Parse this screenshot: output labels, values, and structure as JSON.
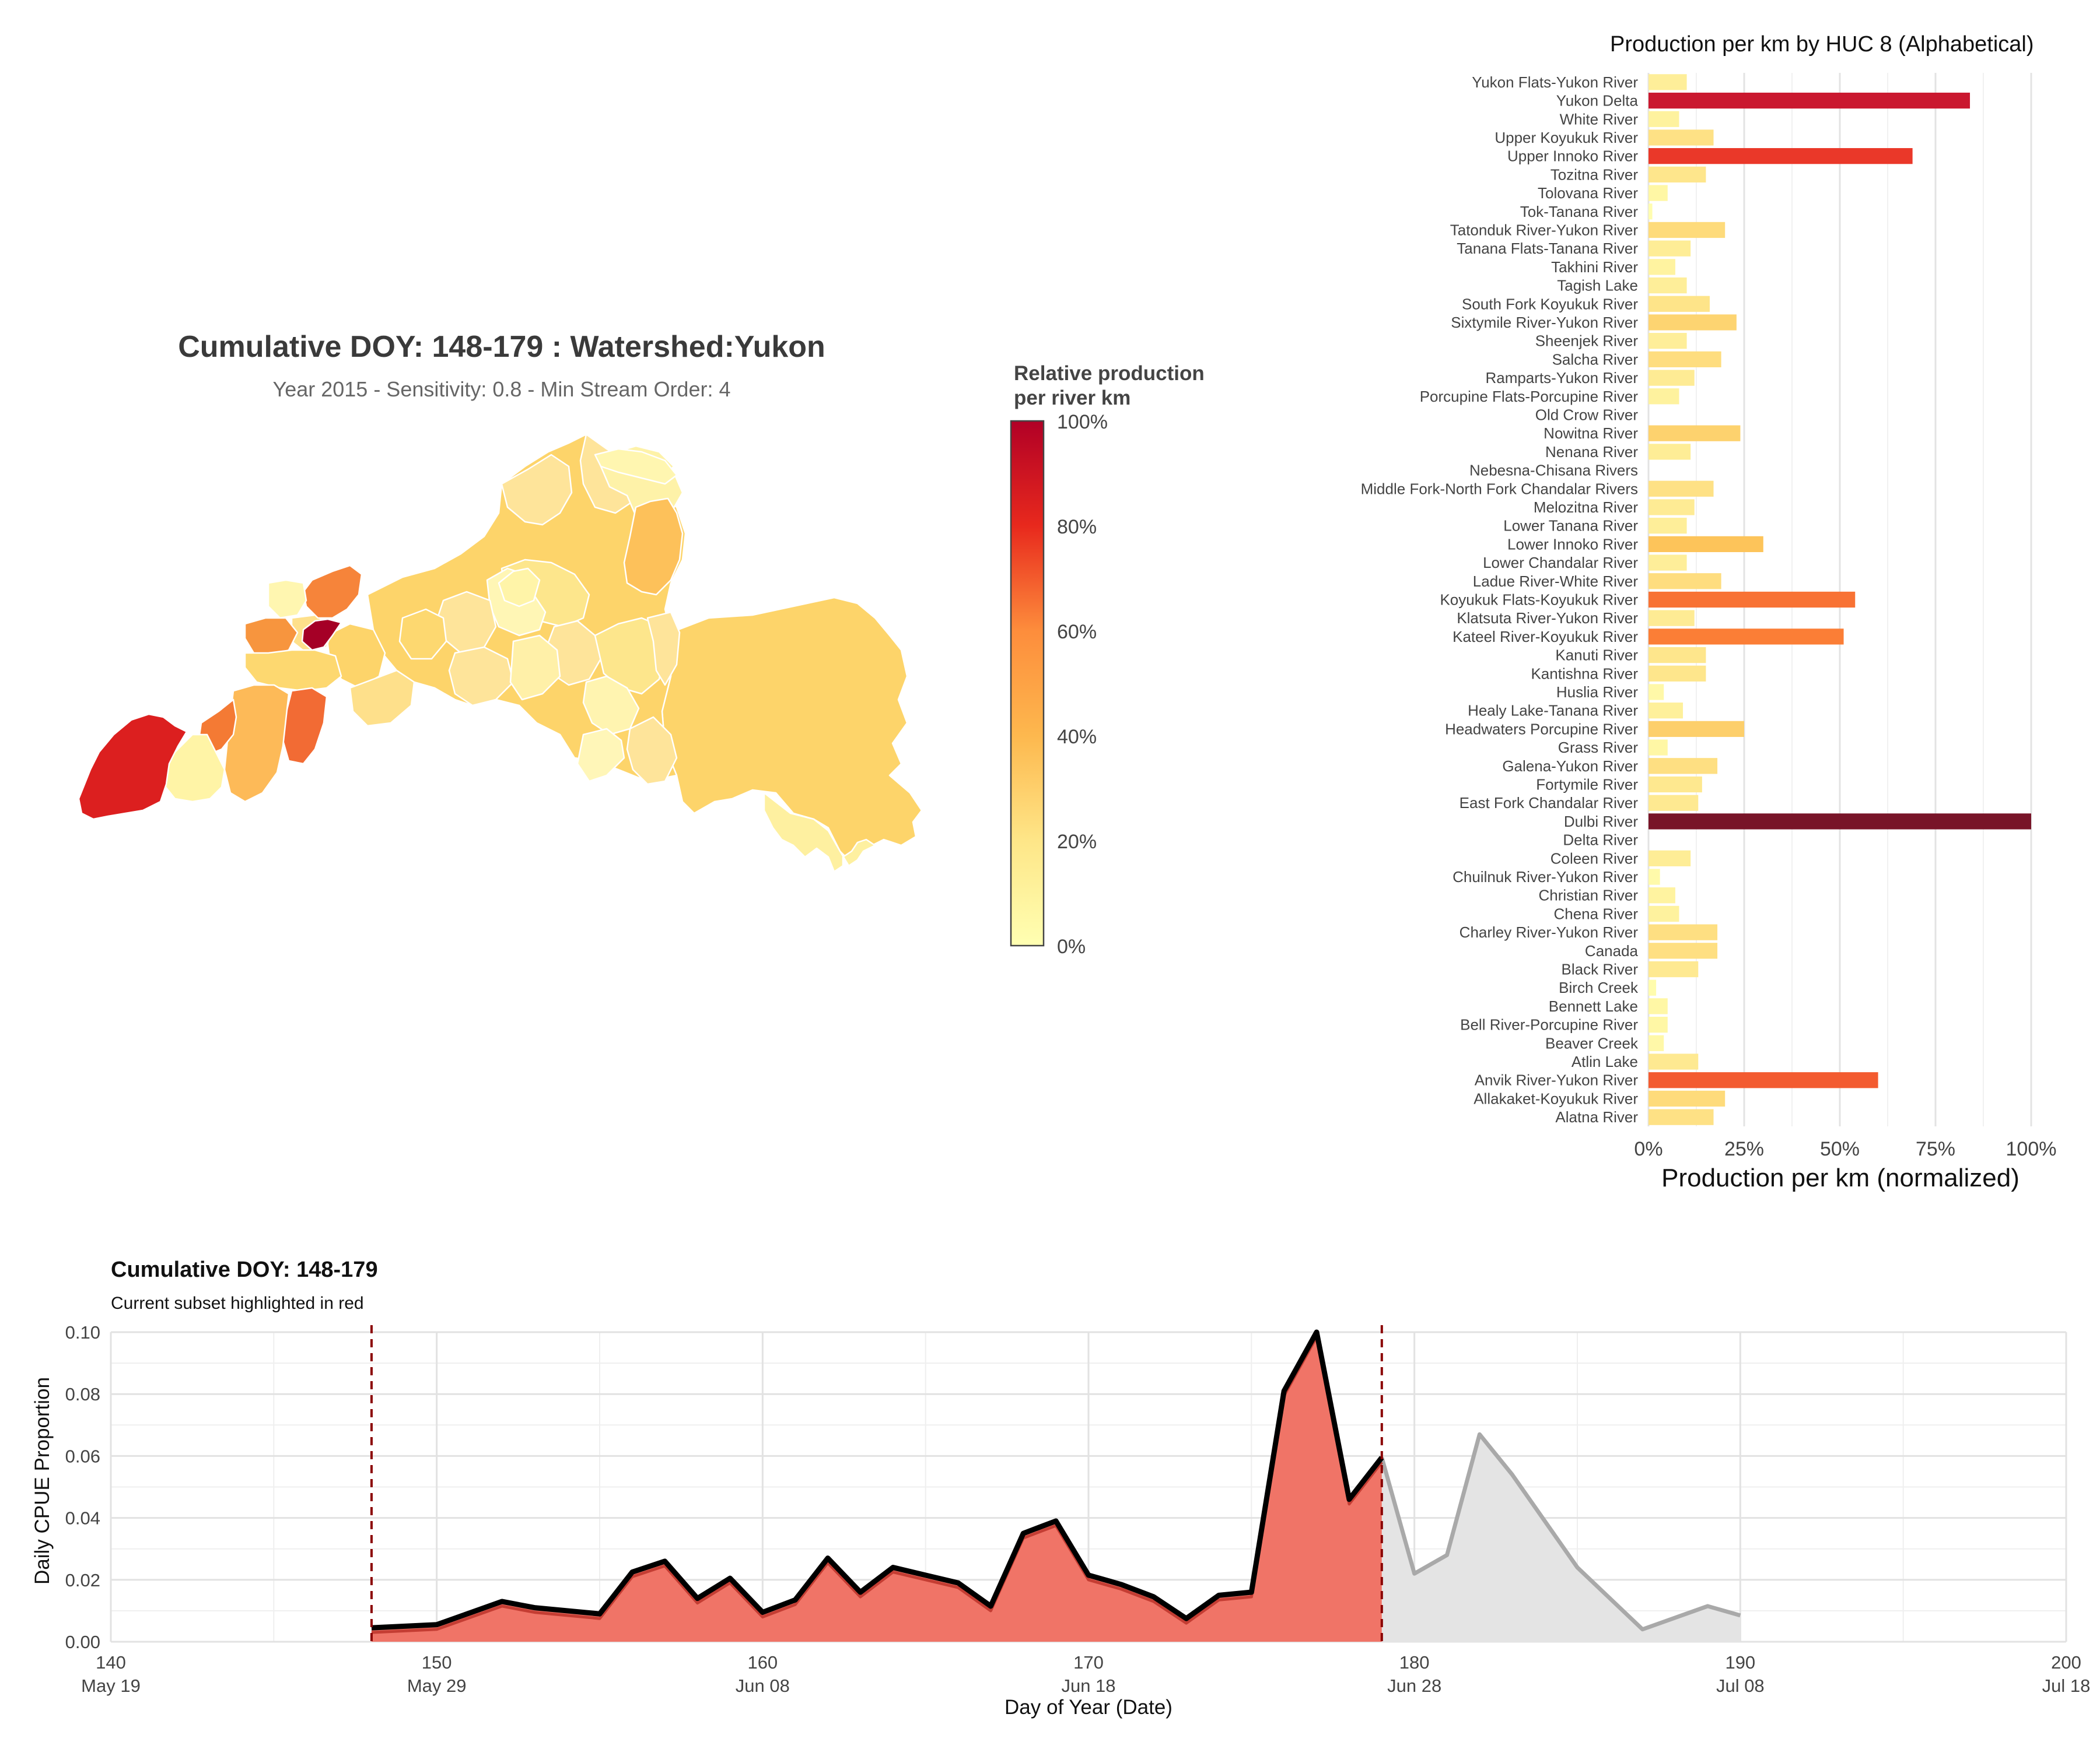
{
  "map": {
    "title": "Cumulative DOY: 148-179 : Watershed:Yukon",
    "subtitle": "Year 2015 - Sensitivity: 0.8 - Min Stream Order: 4",
    "legend_title_line1": "Relative production",
    "legend_title_line2": "per river km",
    "legend_ticks": [
      "100%",
      "80%",
      "60%",
      "40%",
      "20%",
      "0%"
    ],
    "legend_tick_values": [
      1.0,
      0.8,
      0.6,
      0.4,
      0.2,
      0.0
    ],
    "colors": {
      "high": "#b10026",
      "mid_high": "#e31a1c",
      "mid": "#fd8d3c",
      "mid_low": "#fecc5c",
      "low": "#ffffb2"
    }
  },
  "chart_data": [
    {
      "type": "bar",
      "orientation": "horizontal",
      "title": "Production per km by HUC 8 (Alphabetical)",
      "xlabel": "Production per km (normalized)",
      "ylabel": "",
      "xlim": [
        0,
        1
      ],
      "x_ticks": [
        "0%",
        "25%",
        "50%",
        "75%",
        "100%"
      ],
      "x_tick_values": [
        0,
        0.25,
        0.5,
        0.75,
        1.0
      ],
      "grid": true,
      "categories": [
        "Yukon Flats-Yukon River",
        "Yukon Delta",
        "White River",
        "Upper Koyukuk River",
        "Upper Innoko River",
        "Tozitna River",
        "Tolovana River",
        "Tok-Tanana River",
        "Tatonduk River-Yukon River",
        "Tanana Flats-Tanana River",
        "Takhini River",
        "Tagish Lake",
        "South Fork Koyukuk River",
        "Sixtymile River-Yukon River",
        "Sheenjek River",
        "Salcha River",
        "Ramparts-Yukon River",
        "Porcupine Flats-Porcupine River",
        "Old Crow River",
        "Nowitna River",
        "Nenana River",
        "Nebesna-Chisana Rivers",
        "Middle Fork-North Fork Chandalar Rivers",
        "Melozitna River",
        "Lower Tanana River",
        "Lower Innoko River",
        "Lower Chandalar River",
        "Ladue River-White River",
        "Koyukuk Flats-Koyukuk River",
        "Klatsuta River-Yukon River",
        "Kateel River-Koyukuk River",
        "Kanuti River",
        "Kantishna River",
        "Huslia River",
        "Healy Lake-Tanana River",
        "Headwaters Porcupine River",
        "Grass River",
        "Galena-Yukon River",
        "Fortymile River",
        "East Fork Chandalar River",
        "Dulbi River",
        "Delta River",
        "Coleen River",
        "Chuilnuk River-Yukon River",
        "Christian River",
        "Chena River",
        "Charley River-Yukon River",
        "Canada",
        "Black River",
        "Birch Creek",
        "Bennett Lake",
        "Bell River-Porcupine River",
        "Beaver Creek",
        "Atlin Lake",
        "Anvik River-Yukon River",
        "Allakaket-Koyukuk River",
        "Alatna River"
      ],
      "values": [
        0.1,
        0.84,
        0.08,
        0.17,
        0.69,
        0.15,
        0.05,
        0.01,
        0.2,
        0.11,
        0.07,
        0.1,
        0.16,
        0.23,
        0.1,
        0.19,
        0.12,
        0.08,
        0.0,
        0.24,
        0.11,
        0.0,
        0.17,
        0.12,
        0.1,
        0.3,
        0.1,
        0.19,
        0.54,
        0.12,
        0.51,
        0.15,
        0.15,
        0.04,
        0.09,
        0.25,
        0.05,
        0.18,
        0.14,
        0.13,
        1.0,
        0.0,
        0.11,
        0.03,
        0.07,
        0.08,
        0.18,
        0.18,
        0.13,
        0.02,
        0.05,
        0.05,
        0.04,
        0.13,
        0.6,
        0.2,
        0.17
      ]
    },
    {
      "type": "area",
      "title": "Cumulative DOY: 148-179",
      "subtitle": "Current subset highlighted in red",
      "xlabel": "Day of Year (Date)",
      "ylabel": "Daily CPUE Proportion",
      "xlim": [
        140,
        200
      ],
      "ylim": [
        0,
        0.1
      ],
      "x_ticks": [
        140,
        150,
        160,
        170,
        180,
        190,
        200
      ],
      "x_tick_dates": [
        "May 19",
        "May 29",
        "Jun 08",
        "Jun 18",
        "Jun 28",
        "Jul 08",
        "Jul 18"
      ],
      "y_ticks": [
        "0.00",
        "0.02",
        "0.04",
        "0.06",
        "0.08",
        "0.10"
      ],
      "y_tick_values": [
        0,
        0.02,
        0.04,
        0.06,
        0.08,
        0.1
      ],
      "subset_range": [
        148,
        179
      ],
      "grid": true,
      "series": [
        {
          "x": [
            148,
            150,
            152,
            153,
            155,
            156,
            157,
            158,
            159,
            160,
            161,
            162,
            163,
            164,
            165,
            166,
            167,
            168,
            169,
            170,
            171,
            172,
            173,
            174,
            175,
            176,
            177,
            178,
            179,
            180,
            181,
            182,
            183,
            185,
            187,
            189,
            190
          ],
          "values": [
            0.0045,
            0.0055,
            0.013,
            0.011,
            0.009,
            0.0225,
            0.026,
            0.014,
            0.0205,
            0.0095,
            0.0135,
            0.027,
            0.016,
            0.024,
            0.0215,
            0.019,
            0.0115,
            0.035,
            0.039,
            0.0215,
            0.0185,
            0.0145,
            0.0075,
            0.015,
            0.016,
            0.081,
            0.1,
            0.046,
            0.0595,
            0.022,
            0.028,
            0.067,
            0.054,
            0.024,
            0.004,
            0.0115,
            0.0085
          ]
        }
      ]
    }
  ]
}
